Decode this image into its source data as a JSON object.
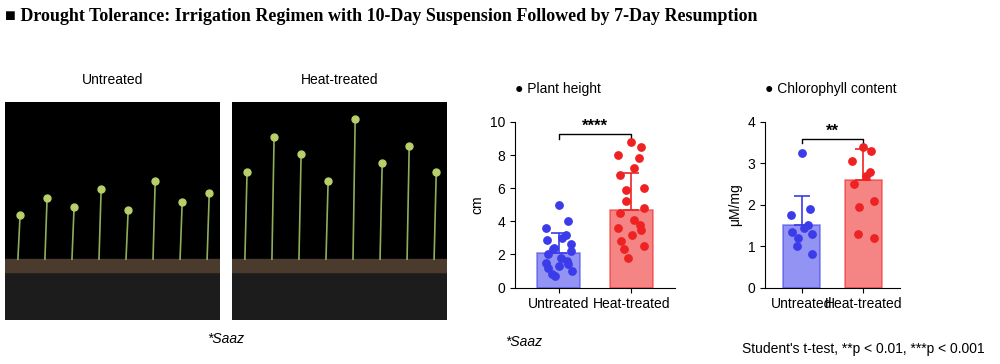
{
  "title": "■ Drought Tolerance: Irrigation Regimen with 10-Day Suspension Followed by 7-Day Resumption",
  "photo_labels": [
    "Untreated",
    "Heat-treated"
  ],
  "photo_caption": "*Saaz",
  "chart_caption": "*Saaz",
  "footnote": "Student's t-test, **p < 0.01, ***p < 0.001",
  "chart_data": [
    {
      "type": "bar",
      "title": "● Plant height",
      "y_label": "cm",
      "categories": [
        "Untreated",
        "Heat-treated"
      ],
      "values": [
        2.1,
        4.7
      ],
      "errors": [
        1.2,
        2.2
      ],
      "colors": [
        "#3b3bea",
        "#ee2222"
      ],
      "points": [
        [
          5.0,
          4.0,
          3.6,
          3.2,
          3.0,
          2.9,
          2.6,
          2.4,
          2.3,
          2.2,
          2.0,
          1.8,
          1.6,
          1.5,
          1.4,
          1.3,
          1.2,
          1.0,
          0.8,
          0.7
        ],
        [
          8.8,
          8.5,
          8.0,
          7.8,
          7.2,
          6.8,
          6.0,
          5.9,
          5.2,
          4.8,
          4.5,
          4.1,
          3.8,
          3.6,
          3.5,
          3.2,
          2.8,
          2.5,
          2.3,
          1.8
        ]
      ],
      "significance": "****",
      "ylim": [
        0,
        10
      ],
      "yticks": [
        0,
        2,
        4,
        6,
        8,
        10
      ]
    },
    {
      "type": "bar",
      "title": "● Chlorophyll content",
      "y_label": "μM/mg",
      "categories": [
        "Untreated",
        "Heat-treated"
      ],
      "values": [
        1.5,
        2.6
      ],
      "errors": [
        0.7,
        0.75
      ],
      "colors": [
        "#3b3bea",
        "#ee2222"
      ],
      "points": [
        [
          3.25,
          1.9,
          1.75,
          1.5,
          1.45,
          1.35,
          1.3,
          1.2,
          1.0,
          0.8
        ],
        [
          3.4,
          3.3,
          3.05,
          2.8,
          2.7,
          2.5,
          2.1,
          1.95,
          1.3,
          1.2
        ]
      ],
      "significance": "**",
      "ylim": [
        0,
        4
      ],
      "yticks": [
        0,
        1,
        2,
        3,
        4
      ]
    }
  ]
}
